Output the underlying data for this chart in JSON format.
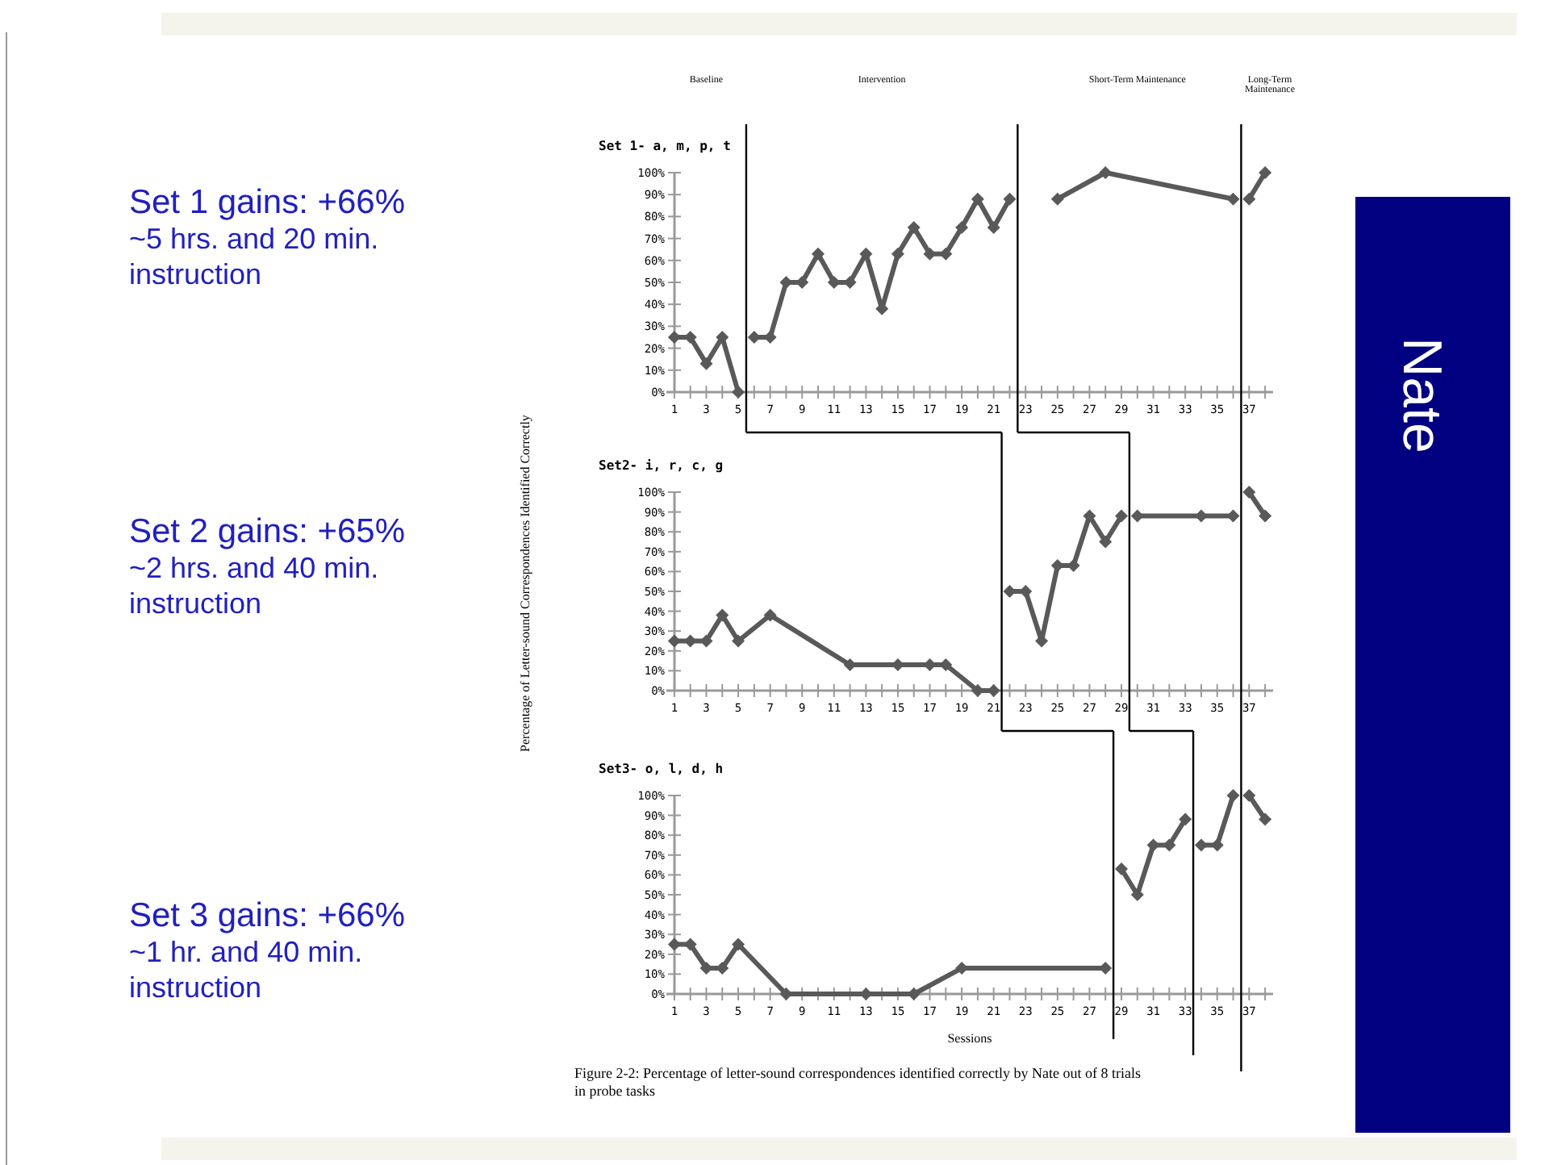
{
  "chart_data": [
    {
      "type": "line",
      "title": "Set 1- a, m, p, t",
      "annotations": [
        "Baseline",
        "Intervention",
        "Short-Term Maintenance",
        "Long-Term Maintenance"
      ],
      "series": [
        {
          "color": "#595959",
          "x": [
            1,
            2,
            3,
            4,
            5,
            5.5,
            6,
            7,
            8,
            9,
            10,
            11,
            12,
            13,
            14,
            15,
            16,
            17,
            18,
            19,
            20,
            21,
            22,
            22.5,
            25,
            28,
            36,
            36.5,
            37,
            38
          ],
          "values": [
            25,
            25,
            13,
            25,
            0,
            null,
            25,
            25,
            50,
            50,
            63,
            50,
            50,
            63,
            38,
            63,
            75,
            63,
            63,
            75,
            88,
            75,
            88,
            null,
            88,
            100,
            88,
            null,
            88,
            100
          ]
        }
      ],
      "xlim": [
        0.5,
        38.5
      ],
      "xticks": [
        1,
        {
          "value": 2,
          "label": null
        },
        3,
        {
          "value": 4,
          "label": null
        },
        5,
        {
          "value": 6,
          "label": null
        },
        7,
        {
          "value": 8,
          "label": null
        },
        9,
        {
          "value": 10,
          "label": null
        },
        11,
        {
          "value": 12,
          "label": null
        },
        13,
        {
          "value": 14,
          "label": null
        },
        15,
        {
          "value": 16,
          "label": null
        },
        17,
        {
          "value": 18,
          "label": null
        },
        19,
        {
          "value": 20,
          "label": null
        },
        21,
        {
          "value": 22,
          "label": null
        },
        23,
        {
          "value": 24,
          "label": null
        },
        25,
        {
          "value": 26,
          "label": null
        },
        27,
        {
          "value": 28,
          "label": null
        },
        29,
        {
          "value": 30,
          "label": null
        },
        31,
        {
          "value": 32,
          "label": null
        },
        33,
        {
          "value": 34,
          "label": null
        },
        35,
        {
          "value": 36,
          "label": null
        },
        37,
        {
          "value": 38,
          "label": null
        }
      ],
      "ylim": [
        0,
        100
      ],
      "yticks": [
        {
          "value": 0,
          "label": "0%"
        },
        {
          "value": 10,
          "label": "10%"
        },
        {
          "value": 20,
          "label": "20%"
        },
        {
          "value": 30,
          "label": "30%"
        },
        {
          "value": 40,
          "label": "40%"
        },
        {
          "value": 50,
          "label": "50%"
        },
        {
          "value": 60,
          "label": "60%"
        },
        {
          "value": 70,
          "label": "70%"
        },
        {
          "value": 80,
          "label": "80%"
        },
        {
          "value": 90,
          "label": "90%"
        },
        {
          "value": 100,
          "label": "100%"
        }
      ],
      "marker": "diamond",
      "grid": false,
      "ref_lines": [
        {
          "axis": "x",
          "value": 5.5,
          "color": "#000000"
        },
        {
          "axis": "x",
          "value": 22.5,
          "color": "#000000"
        },
        {
          "axis": "x",
          "value": 36.5,
          "color": "#000000"
        }
      ]
    },
    {
      "type": "line",
      "title": "Set2- i, r, c, g",
      "ylabel": "Percentage of Letter-sound Correspondences Identified Correctly",
      "series": [
        {
          "color": "#595959",
          "x": [
            1,
            2,
            3,
            4,
            5,
            7,
            12,
            15,
            17,
            18,
            20,
            21,
            21.5,
            22,
            23,
            24,
            25,
            26,
            27,
            28,
            29,
            29.5,
            30,
            34,
            36,
            36.5,
            37,
            38
          ],
          "values": [
            25,
            25,
            25,
            38,
            25,
            38,
            13,
            13,
            13,
            13,
            0,
            0,
            null,
            50,
            50,
            25,
            63,
            63,
            88,
            75,
            88,
            null,
            88,
            88,
            88,
            null,
            100,
            88
          ]
        }
      ],
      "xlim": [
        0.5,
        38.5
      ],
      "xticks": [
        1,
        {
          "value": 2,
          "label": null
        },
        3,
        {
          "value": 4,
          "label": null
        },
        5,
        {
          "value": 6,
          "label": null
        },
        7,
        {
          "value": 8,
          "label": null
        },
        9,
        {
          "value": 10,
          "label": null
        },
        11,
        {
          "value": 12,
          "label": null
        },
        13,
        {
          "value": 14,
          "label": null
        },
        15,
        {
          "value": 16,
          "label": null
        },
        17,
        {
          "value": 18,
          "label": null
        },
        19,
        {
          "value": 20,
          "label": null
        },
        21,
        {
          "value": 22,
          "label": null
        },
        23,
        {
          "value": 24,
          "label": null
        },
        25,
        {
          "value": 26,
          "label": null
        },
        27,
        {
          "value": 28,
          "label": null
        },
        29,
        {
          "value": 30,
          "label": null
        },
        31,
        {
          "value": 32,
          "label": null
        },
        33,
        {
          "value": 34,
          "label": null
        },
        35,
        {
          "value": 36,
          "label": null
        },
        37,
        {
          "value": 38,
          "label": null
        }
      ],
      "ylim": [
        0,
        100
      ],
      "yticks": [
        {
          "value": 0,
          "label": "0%"
        },
        {
          "value": 10,
          "label": "10%"
        },
        {
          "value": 20,
          "label": "20%"
        },
        {
          "value": 30,
          "label": "30%"
        },
        {
          "value": 40,
          "label": "40%"
        },
        {
          "value": 50,
          "label": "50%"
        },
        {
          "value": 60,
          "label": "60%"
        },
        {
          "value": 70,
          "label": "70%"
        },
        {
          "value": 80,
          "label": "80%"
        },
        {
          "value": 90,
          "label": "90%"
        },
        {
          "value": 100,
          "label": "100%"
        }
      ],
      "marker": "diamond",
      "grid": false,
      "ref_lines": [
        {
          "axis": "x",
          "value": 21.5,
          "color": "#000000"
        },
        {
          "axis": "x",
          "value": 29.5,
          "color": "#000000"
        },
        {
          "axis": "x",
          "value": 36.5,
          "color": "#000000"
        }
      ]
    },
    {
      "type": "line",
      "title": "Set3- o, l, d, h",
      "xlabel": "Sessions",
      "annotations": [
        "Figure 2-2: Percentage of letter-sound correspondences identified correctly by Nate out of 8 trials in probe tasks"
      ],
      "series": [
        {
          "color": "#595959",
          "x": [
            1,
            2,
            3,
            4,
            5,
            8,
            13,
            16,
            19,
            28,
            28.5,
            29,
            30,
            31,
            32,
            33,
            33.5,
            34,
            35,
            36,
            36.5,
            37,
            38
          ],
          "values": [
            25,
            25,
            13,
            13,
            25,
            0,
            0,
            0,
            13,
            13,
            null,
            63,
            50,
            75,
            75,
            88,
            null,
            75,
            75,
            100,
            null,
            100,
            88
          ]
        }
      ],
      "xlim": [
        0.5,
        38.5
      ],
      "xticks": [
        1,
        {
          "value": 2,
          "label": null
        },
        3,
        {
          "value": 4,
          "label": null
        },
        5,
        {
          "value": 6,
          "label": null
        },
        7,
        {
          "value": 8,
          "label": null
        },
        9,
        {
          "value": 10,
          "label": null
        },
        11,
        {
          "value": 12,
          "label": null
        },
        13,
        {
          "value": 14,
          "label": null
        },
        15,
        {
          "value": 16,
          "label": null
        },
        17,
        {
          "value": 18,
          "label": null
        },
        19,
        {
          "value": 20,
          "label": null
        },
        21,
        {
          "value": 22,
          "label": null
        },
        23,
        {
          "value": 24,
          "label": null
        },
        25,
        {
          "value": 26,
          "label": null
        },
        27,
        {
          "value": 28,
          "label": null
        },
        29,
        {
          "value": 30,
          "label": null
        },
        31,
        {
          "value": 32,
          "label": null
        },
        33,
        {
          "value": 34,
          "label": null
        },
        35,
        {
          "value": 36,
          "label": null
        },
        37,
        {
          "value": 38,
          "label": null
        }
      ],
      "ylim": [
        0,
        100
      ],
      "yticks": [
        {
          "value": 0,
          "label": "0%"
        },
        {
          "value": 10,
          "label": "10%"
        },
        {
          "value": 20,
          "label": "20%"
        },
        {
          "value": 30,
          "label": "30%"
        },
        {
          "value": 40,
          "label": "40%"
        },
        {
          "value": 50,
          "label": "50%"
        },
        {
          "value": 60,
          "label": "60%"
        },
        {
          "value": 70,
          "label": "70%"
        },
        {
          "value": 80,
          "label": "80%"
        },
        {
          "value": 90,
          "label": "90%"
        },
        {
          "value": 100,
          "label": "100%"
        }
      ],
      "marker": "diamond",
      "grid": false,
      "ref_lines": [
        {
          "axis": "x",
          "value": 28.5,
          "color": "#000000"
        },
        {
          "axis": "x",
          "value": 33.5,
          "color": "#000000"
        },
        {
          "axis": "x",
          "value": 36.5,
          "color": "#000000"
        }
      ]
    },
    {
      "type": "other",
      "title": "Nate",
      "annotations": [
        "Set 1 gains: +66%",
        "~5 hrs. and 20 min. instruction",
        "Set 2 gains: +65%",
        "~2 hrs. and 40 min. instruction",
        "Set 3 gains: +66%",
        "~1 hr. and 40 min. instruction"
      ]
    }
  ]
}
